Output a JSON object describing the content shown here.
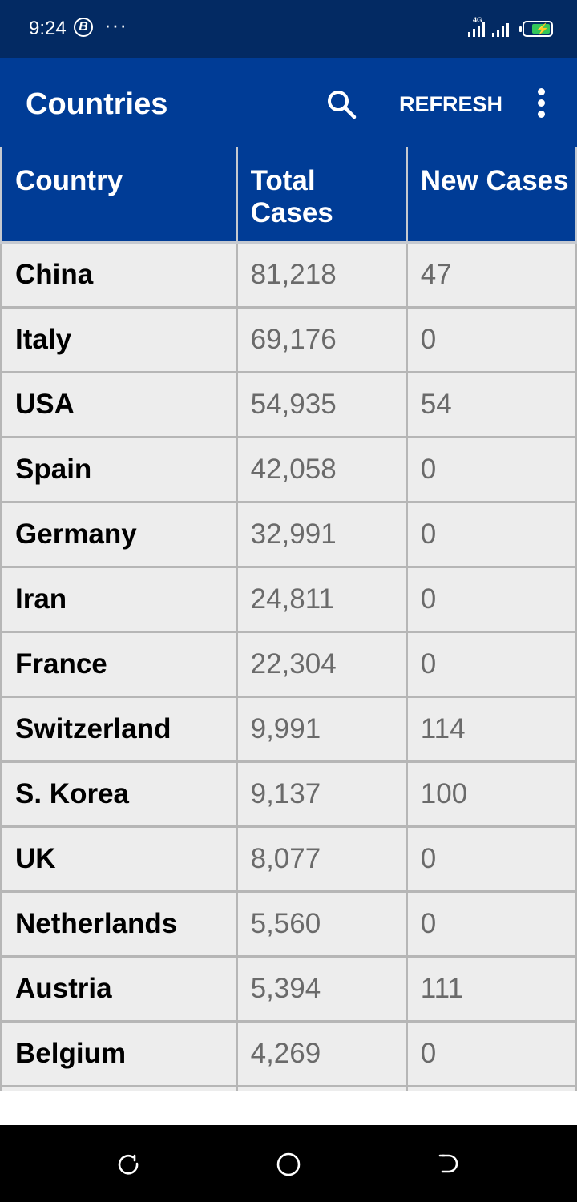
{
  "status_bar": {
    "time": "9:24",
    "notification_icon": "B",
    "more_dots": "···",
    "network_label": "4G"
  },
  "app_bar": {
    "title": "Countries",
    "refresh_label": "REFRESH",
    "icons": [
      "search-icon",
      "more-vert-icon"
    ]
  },
  "table": {
    "headers": [
      "Country",
      "Total Cases",
      "New Cases"
    ],
    "rows": [
      {
        "country": "China",
        "total": "81,218",
        "new": "47"
      },
      {
        "country": "Italy",
        "total": "69,176",
        "new": "0"
      },
      {
        "country": "USA",
        "total": "54,935",
        "new": "54"
      },
      {
        "country": "Spain",
        "total": "42,058",
        "new": "0"
      },
      {
        "country": "Germany",
        "total": "32,991",
        "new": "0"
      },
      {
        "country": "Iran",
        "total": "24,811",
        "new": "0"
      },
      {
        "country": "France",
        "total": "22,304",
        "new": "0"
      },
      {
        "country": "Switzerland",
        "total": "9,991",
        "new": "114"
      },
      {
        "country": "S. Korea",
        "total": "9,137",
        "new": "100"
      },
      {
        "country": "UK",
        "total": "8,077",
        "new": "0"
      },
      {
        "country": "Netherlands",
        "total": "5,560",
        "new": "0"
      },
      {
        "country": "Austria",
        "total": "5,394",
        "new": "111"
      },
      {
        "country": "Belgium",
        "total": "4,269",
        "new": "0"
      },
      {
        "country": "",
        "total": "",
        "new": ""
      }
    ]
  },
  "nav_bar": {
    "icons": [
      "recent-apps-icon",
      "home-icon",
      "back-icon"
    ]
  },
  "colors": {
    "status_bar": "#032a63",
    "app_bar": "#003c96",
    "cell_bg": "#ededed",
    "cell_border": "#b6b6b6",
    "value_text": "#6a6a6a"
  }
}
